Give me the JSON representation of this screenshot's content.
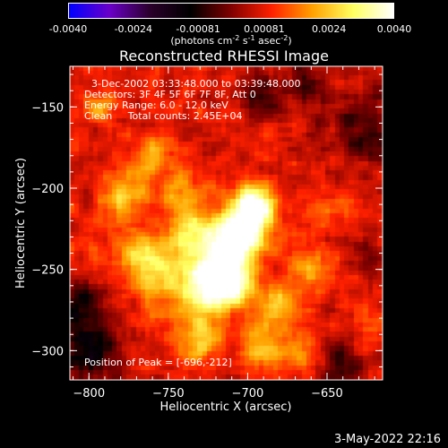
{
  "colorbar": {
    "ticks": [
      "-0.0040",
      "-0.0024",
      "-0.00081",
      "0.00081",
      "0.0024",
      "0.0040"
    ],
    "tick_values": [
      -0.004,
      -0.0024,
      -0.00081,
      0.00081,
      0.0024,
      0.004
    ],
    "range": [
      -0.004,
      0.004
    ],
    "units_base": "(photons cm",
    "units_sup1": "-2",
    "units_mid1": " s",
    "units_sup2": "-1",
    "units_mid2": " asec",
    "units_sup3": "-2",
    "units_end": ")",
    "colors": [
      "#0000ff",
      "#6a00c8",
      "#2a002a",
      "#000000",
      "#800000",
      "#ff2000",
      "#ffa000",
      "#ffff60",
      "#ffffff"
    ]
  },
  "chart_data": {
    "type": "heatmap",
    "title": "Reconstructed RHESSI Image",
    "xlabel": "Heliocentric X (arcsec)",
    "ylabel": "Heliocentric Y (arcsec)",
    "xlim": [
      -812,
      -615
    ],
    "ylim": [
      -318,
      -125
    ],
    "x_ticks": [
      -800,
      -750,
      -700,
      -650
    ],
    "y_ticks": [
      -150,
      -200,
      -250,
      -300
    ],
    "x_tick_labels": [
      "−800",
      "−750",
      "−700",
      "−650"
    ],
    "y_tick_labels": [
      "−150",
      "−200",
      "−250",
      "−300"
    ],
    "peak": [
      -696,
      -212
    ],
    "sources": [
      {
        "x": -696,
        "y": -212,
        "v": 1.0,
        "s": 9
      },
      {
        "x": -703,
        "y": -228,
        "v": 0.85,
        "s": 10
      },
      {
        "x": -715,
        "y": -245,
        "v": 0.7,
        "s": 13
      },
      {
        "x": -725,
        "y": -262,
        "v": 0.65,
        "s": 10
      },
      {
        "x": -708,
        "y": -262,
        "v": 0.55,
        "s": 9
      },
      {
        "x": -735,
        "y": -225,
        "v": 0.5,
        "s": 12
      },
      {
        "x": -752,
        "y": -255,
        "v": 0.45,
        "s": 14
      },
      {
        "x": -778,
        "y": -205,
        "v": 0.45,
        "s": 9
      },
      {
        "x": -770,
        "y": -240,
        "v": 0.35,
        "s": 10
      },
      {
        "x": -760,
        "y": -182,
        "v": 0.35,
        "s": 10
      },
      {
        "x": -730,
        "y": -292,
        "v": 0.4,
        "s": 11
      },
      {
        "x": -690,
        "y": -297,
        "v": 0.4,
        "s": 10
      },
      {
        "x": -663,
        "y": -300,
        "v": 0.3,
        "s": 9
      },
      {
        "x": -660,
        "y": -250,
        "v": 0.3,
        "s": 10
      },
      {
        "x": -648,
        "y": -212,
        "v": 0.2,
        "s": 9
      },
      {
        "x": -792,
        "y": -150,
        "v": 0.25,
        "s": 8
      },
      {
        "x": -680,
        "y": -272,
        "v": 0.4,
        "s": 9
      },
      {
        "x": -742,
        "y": -200,
        "v": 0.3,
        "s": 9
      },
      {
        "x": -622,
        "y": -290,
        "v": 0.15,
        "s": 8
      },
      {
        "x": -800,
        "y": -300,
        "v": -0.5,
        "s": 12
      },
      {
        "x": -805,
        "y": -270,
        "v": -0.35,
        "s": 10
      },
      {
        "x": -625,
        "y": -165,
        "v": -0.3,
        "s": 16
      },
      {
        "x": -690,
        "y": -142,
        "v": -0.3,
        "s": 10
      },
      {
        "x": -640,
        "y": -308,
        "v": -0.3,
        "s": 10
      },
      {
        "x": -625,
        "y": -240,
        "v": -0.2,
        "s": 10
      },
      {
        "x": -660,
        "y": -135,
        "v": -0.25,
        "s": 10
      }
    ]
  },
  "overlay": {
    "line1": "3-Dec-2002 03:33:48.000 to 03:39:48.000",
    "line2": "Detectors: 3F 4F 5F 6F 7F 8F, Att 0",
    "line3": "Energy Range: 6.0 - 12.0 keV",
    "line4": "Clean     Total counts: 2.45E+04",
    "peak_text": "Position of Peak = [-696,-212]"
  },
  "footer_timestamp": "3-May-2022 22:16"
}
